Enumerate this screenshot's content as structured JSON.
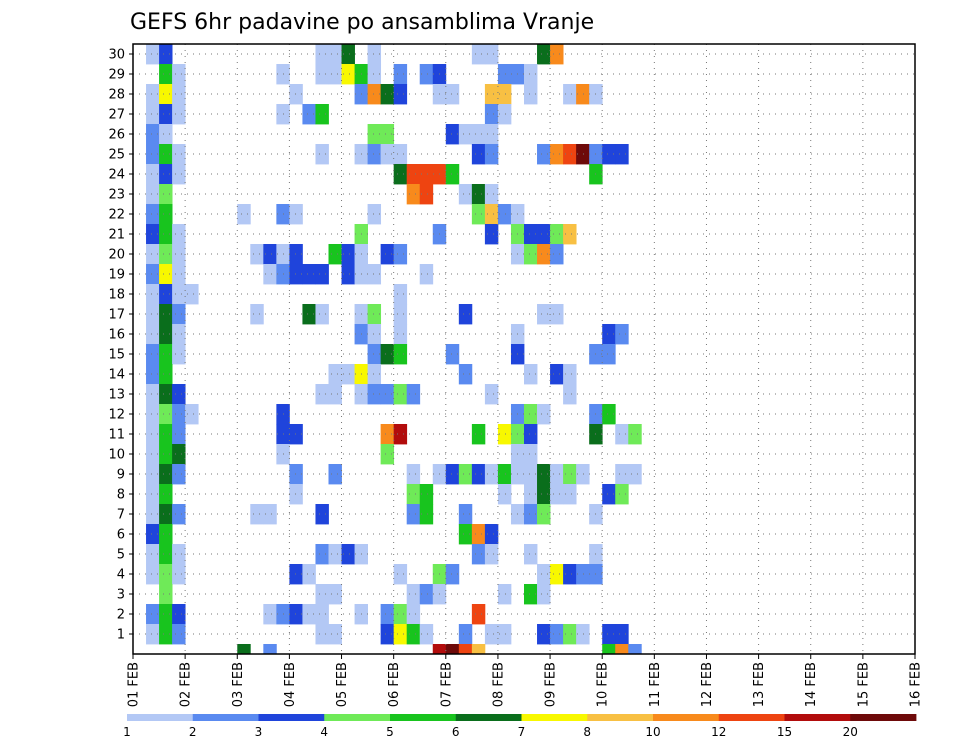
{
  "chart_data": {
    "type": "heatmap",
    "title": "GEFS 6hr padavine po ansamblima Vranje",
    "x_tick_labels": [
      "01 FEB",
      "02 FEB",
      "03 FEB",
      "04 FEB",
      "05 FEB",
      "06 FEB",
      "07 FEB",
      "08 FEB",
      "09 FEB",
      "10 FEB",
      "11 FEB",
      "12 FEB",
      "13 FEB",
      "14 FEB",
      "15 FEB",
      "16 FEB"
    ],
    "y_tick_labels": [
      "1",
      "2",
      "3",
      "4",
      "5",
      "6",
      "7",
      "8",
      "9",
      "10",
      "11",
      "12",
      "13",
      "14",
      "15",
      "16",
      "17",
      "18",
      "19",
      "20",
      "21",
      "22",
      "23",
      "24",
      "25",
      "26",
      "27",
      "28",
      "29",
      "30"
    ],
    "x_range_days": [
      0,
      15
    ],
    "y_range_members": [
      0,
      30
    ],
    "time_step_hours": 6,
    "members": 30,
    "colorbar": {
      "tick_labels": [
        "1",
        "2",
        "3",
        "4",
        "5",
        "6",
        "7",
        "8",
        "10",
        "12",
        "15",
        "20"
      ],
      "levels": [
        1,
        2,
        3,
        4,
        5,
        6,
        7,
        8,
        10,
        12,
        15,
        20
      ],
      "colors": [
        "#b3c8f5",
        "#5a8af0",
        "#1f44db",
        "#6fea58",
        "#18c41e",
        "#0a6e1c",
        "#f8f800",
        "#f8c043",
        "#f88a1c",
        "#ee4411",
        "#b20c0c",
        "#6e0a0a"
      ]
    },
    "cells": [
      [
        30,
        1,
        0
      ],
      [
        30,
        2,
        2
      ],
      [
        30,
        14,
        0
      ],
      [
        30,
        15,
        0
      ],
      [
        30,
        16,
        5
      ],
      [
        30,
        18,
        0
      ],
      [
        30,
        26,
        0
      ],
      [
        30,
        27,
        0
      ],
      [
        30,
        31,
        5
      ],
      [
        30,
        32,
        8
      ],
      [
        29,
        2,
        4
      ],
      [
        29,
        3,
        0
      ],
      [
        29,
        11,
        0
      ],
      [
        29,
        14,
        0
      ],
      [
        29,
        15,
        0
      ],
      [
        29,
        16,
        6
      ],
      [
        29,
        17,
        4
      ],
      [
        29,
        18,
        0
      ],
      [
        29,
        20,
        1
      ],
      [
        29,
        22,
        1
      ],
      [
        29,
        23,
        2
      ],
      [
        29,
        28,
        1
      ],
      [
        29,
        29,
        1
      ],
      [
        29,
        30,
        0
      ],
      [
        28,
        1,
        0
      ],
      [
        28,
        2,
        6
      ],
      [
        28,
        3,
        0
      ],
      [
        28,
        12,
        0
      ],
      [
        28,
        17,
        1
      ],
      [
        28,
        18,
        8
      ],
      [
        28,
        19,
        5
      ],
      [
        28,
        20,
        2
      ],
      [
        28,
        23,
        0
      ],
      [
        28,
        24,
        0
      ],
      [
        28,
        27,
        7
      ],
      [
        28,
        28,
        7
      ],
      [
        28,
        30,
        0
      ],
      [
        28,
        33,
        0
      ],
      [
        28,
        34,
        8
      ],
      [
        28,
        35,
        0
      ],
      [
        27,
        1,
        0
      ],
      [
        27,
        2,
        2
      ],
      [
        27,
        3,
        0
      ],
      [
        27,
        11,
        0
      ],
      [
        27,
        13,
        1
      ],
      [
        27,
        14,
        4
      ],
      [
        27,
        27,
        1
      ],
      [
        27,
        28,
        0
      ],
      [
        26,
        1,
        1
      ],
      [
        26,
        2,
        0
      ],
      [
        26,
        18,
        3
      ],
      [
        26,
        19,
        3
      ],
      [
        26,
        24,
        2
      ],
      [
        26,
        25,
        0
      ],
      [
        26,
        26,
        0
      ],
      [
        26,
        27,
        0
      ],
      [
        25,
        1,
        1
      ],
      [
        25,
        2,
        4
      ],
      [
        25,
        3,
        0
      ],
      [
        25,
        14,
        0
      ],
      [
        25,
        17,
        0
      ],
      [
        25,
        18,
        1
      ],
      [
        25,
        19,
        0
      ],
      [
        25,
        20,
        0
      ],
      [
        25,
        26,
        2
      ],
      [
        25,
        27,
        1
      ],
      [
        25,
        31,
        1
      ],
      [
        25,
        32,
        8
      ],
      [
        25,
        33,
        9
      ],
      [
        25,
        34,
        11
      ],
      [
        25,
        35,
        1
      ],
      [
        25,
        36,
        2
      ],
      [
        25,
        37,
        2
      ],
      [
        24,
        1,
        0
      ],
      [
        24,
        2,
        2
      ],
      [
        24,
        3,
        0
      ],
      [
        24,
        20,
        5
      ],
      [
        24,
        21,
        9
      ],
      [
        24,
        22,
        9
      ],
      [
        24,
        23,
        9
      ],
      [
        24,
        24,
        4
      ],
      [
        24,
        35,
        4
      ],
      [
        23,
        1,
        0
      ],
      [
        23,
        2,
        3
      ],
      [
        23,
        21,
        8
      ],
      [
        23,
        22,
        9
      ],
      [
        23,
        25,
        0
      ],
      [
        23,
        26,
        5
      ],
      [
        23,
        27,
        0
      ],
      [
        22,
        1,
        1
      ],
      [
        22,
        2,
        4
      ],
      [
        22,
        8,
        0
      ],
      [
        22,
        11,
        1
      ],
      [
        22,
        12,
        0
      ],
      [
        22,
        18,
        0
      ],
      [
        22,
        26,
        3
      ],
      [
        22,
        27,
        7
      ],
      [
        22,
        28,
        1
      ],
      [
        22,
        29,
        0
      ],
      [
        21,
        1,
        2
      ],
      [
        21,
        2,
        4
      ],
      [
        21,
        3,
        0
      ],
      [
        21,
        17,
        3
      ],
      [
        21,
        23,
        1
      ],
      [
        21,
        27,
        2
      ],
      [
        21,
        29,
        3
      ],
      [
        21,
        30,
        2
      ],
      [
        21,
        31,
        2
      ],
      [
        21,
        32,
        3
      ],
      [
        21,
        33,
        7
      ],
      [
        20,
        1,
        0
      ],
      [
        20,
        2,
        3
      ],
      [
        20,
        3,
        0
      ],
      [
        20,
        9,
        0
      ],
      [
        20,
        10,
        2
      ],
      [
        20,
        11,
        0
      ],
      [
        20,
        12,
        2
      ],
      [
        20,
        15,
        4
      ],
      [
        20,
        16,
        2
      ],
      [
        20,
        17,
        0
      ],
      [
        20,
        19,
        2
      ],
      [
        20,
        20,
        1
      ],
      [
        20,
        29,
        0
      ],
      [
        20,
        30,
        3
      ],
      [
        20,
        31,
        8
      ],
      [
        20,
        32,
        1
      ],
      [
        19,
        1,
        1
      ],
      [
        19,
        2,
        6
      ],
      [
        19,
        3,
        0
      ],
      [
        19,
        10,
        0
      ],
      [
        19,
        11,
        1
      ],
      [
        19,
        12,
        2
      ],
      [
        19,
        13,
        2
      ],
      [
        19,
        14,
        2
      ],
      [
        19,
        16,
        2
      ],
      [
        19,
        17,
        0
      ],
      [
        19,
        18,
        0
      ],
      [
        19,
        22,
        0
      ],
      [
        18,
        1,
        0
      ],
      [
        18,
        2,
        2
      ],
      [
        18,
        3,
        0
      ],
      [
        18,
        4,
        0
      ],
      [
        18,
        20,
        0
      ],
      [
        17,
        1,
        0
      ],
      [
        17,
        2,
        5
      ],
      [
        17,
        3,
        1
      ],
      [
        17,
        9,
        0
      ],
      [
        17,
        13,
        5
      ],
      [
        17,
        14,
        0
      ],
      [
        17,
        17,
        0
      ],
      [
        17,
        18,
        3
      ],
      [
        17,
        20,
        0
      ],
      [
        17,
        25,
        2
      ],
      [
        17,
        31,
        0
      ],
      [
        17,
        32,
        0
      ],
      [
        16,
        1,
        0
      ],
      [
        16,
        2,
        5
      ],
      [
        16,
        3,
        0
      ],
      [
        16,
        17,
        1
      ],
      [
        16,
        18,
        0
      ],
      [
        16,
        20,
        0
      ],
      [
        16,
        29,
        0
      ],
      [
        16,
        36,
        2
      ],
      [
        16,
        37,
        1
      ],
      [
        15,
        1,
        1
      ],
      [
        15,
        2,
        4
      ],
      [
        15,
        3,
        0
      ],
      [
        15,
        18,
        1
      ],
      [
        15,
        19,
        5
      ],
      [
        15,
        20,
        4
      ],
      [
        15,
        24,
        1
      ],
      [
        15,
        29,
        2
      ],
      [
        15,
        35,
        1
      ],
      [
        15,
        36,
        1
      ],
      [
        14,
        1,
        1
      ],
      [
        14,
        2,
        4
      ],
      [
        14,
        15,
        0
      ],
      [
        14,
        16,
        0
      ],
      [
        14,
        17,
        6
      ],
      [
        14,
        18,
        0
      ],
      [
        14,
        25,
        1
      ],
      [
        14,
        30,
        0
      ],
      [
        14,
        32,
        2
      ],
      [
        14,
        33,
        0
      ],
      [
        13,
        1,
        0
      ],
      [
        13,
        2,
        5
      ],
      [
        13,
        3,
        2
      ],
      [
        13,
        14,
        0
      ],
      [
        13,
        15,
        0
      ],
      [
        13,
        17,
        0
      ],
      [
        13,
        18,
        1
      ],
      [
        13,
        19,
        1
      ],
      [
        13,
        20,
        3
      ],
      [
        13,
        21,
        1
      ],
      [
        13,
        27,
        0
      ],
      [
        13,
        33,
        0
      ],
      [
        12,
        1,
        0
      ],
      [
        12,
        2,
        3
      ],
      [
        12,
        3,
        1
      ],
      [
        12,
        4,
        0
      ],
      [
        12,
        11,
        2
      ],
      [
        12,
        29,
        1
      ],
      [
        12,
        30,
        3
      ],
      [
        12,
        31,
        0
      ],
      [
        12,
        35,
        1
      ],
      [
        12,
        36,
        4
      ],
      [
        11,
        1,
        0
      ],
      [
        11,
        2,
        4
      ],
      [
        11,
        3,
        1
      ],
      [
        11,
        11,
        2
      ],
      [
        11,
        12,
        2
      ],
      [
        11,
        19,
        8
      ],
      [
        11,
        20,
        10
      ],
      [
        11,
        26,
        4
      ],
      [
        11,
        28,
        6
      ],
      [
        11,
        29,
        3
      ],
      [
        11,
        30,
        2
      ],
      [
        11,
        35,
        5
      ],
      [
        11,
        37,
        0
      ],
      [
        11,
        38,
        3
      ],
      [
        10,
        1,
        0
      ],
      [
        10,
        2,
        4
      ],
      [
        10,
        3,
        5
      ],
      [
        10,
        11,
        0
      ],
      [
        10,
        19,
        3
      ],
      [
        10,
        29,
        0
      ],
      [
        10,
        30,
        0
      ],
      [
        9,
        1,
        0
      ],
      [
        9,
        2,
        5
      ],
      [
        9,
        3,
        1
      ],
      [
        9,
        12,
        1
      ],
      [
        9,
        15,
        1
      ],
      [
        9,
        21,
        0
      ],
      [
        9,
        23,
        0
      ],
      [
        9,
        24,
        2
      ],
      [
        9,
        25,
        3
      ],
      [
        9,
        26,
        2
      ],
      [
        9,
        27,
        0
      ],
      [
        9,
        28,
        4
      ],
      [
        9,
        29,
        0
      ],
      [
        9,
        30,
        0
      ],
      [
        9,
        31,
        5
      ],
      [
        9,
        32,
        0
      ],
      [
        9,
        33,
        3
      ],
      [
        9,
        34,
        0
      ],
      [
        9,
        37,
        0
      ],
      [
        9,
        38,
        0
      ],
      [
        8,
        1,
        0
      ],
      [
        8,
        2,
        4
      ],
      [
        8,
        12,
        0
      ],
      [
        8,
        21,
        3
      ],
      [
        8,
        22,
        4
      ],
      [
        8,
        28,
        0
      ],
      [
        8,
        30,
        0
      ],
      [
        8,
        31,
        5
      ],
      [
        8,
        32,
        0
      ],
      [
        8,
        33,
        0
      ],
      [
        8,
        36,
        2
      ],
      [
        8,
        37,
        3
      ],
      [
        7,
        1,
        0
      ],
      [
        7,
        2,
        5
      ],
      [
        7,
        3,
        1
      ],
      [
        7,
        9,
        0
      ],
      [
        7,
        10,
        0
      ],
      [
        7,
        14,
        2
      ],
      [
        7,
        21,
        1
      ],
      [
        7,
        22,
        4
      ],
      [
        7,
        25,
        1
      ],
      [
        7,
        29,
        0
      ],
      [
        7,
        30,
        1
      ],
      [
        7,
        31,
        3
      ],
      [
        7,
        35,
        0
      ],
      [
        6,
        1,
        2
      ],
      [
        6,
        2,
        4
      ],
      [
        6,
        25,
        4
      ],
      [
        6,
        26,
        8
      ],
      [
        6,
        27,
        2
      ],
      [
        5,
        1,
        0
      ],
      [
        5,
        2,
        4
      ],
      [
        5,
        3,
        0
      ],
      [
        5,
        14,
        1
      ],
      [
        5,
        15,
        0
      ],
      [
        5,
        16,
        2
      ],
      [
        5,
        17,
        0
      ],
      [
        5,
        26,
        1
      ],
      [
        5,
        27,
        0
      ],
      [
        5,
        30,
        0
      ],
      [
        5,
        35,
        0
      ],
      [
        4,
        1,
        0
      ],
      [
        4,
        2,
        3
      ],
      [
        4,
        3,
        0
      ],
      [
        4,
        12,
        2
      ],
      [
        4,
        13,
        0
      ],
      [
        4,
        20,
        0
      ],
      [
        4,
        23,
        3
      ],
      [
        4,
        24,
        1
      ],
      [
        4,
        31,
        0
      ],
      [
        4,
        32,
        6
      ],
      [
        4,
        33,
        2
      ],
      [
        4,
        34,
        1
      ],
      [
        4,
        35,
        1
      ],
      [
        3,
        2,
        3
      ],
      [
        3,
        14,
        0
      ],
      [
        3,
        15,
        0
      ],
      [
        3,
        21,
        0
      ],
      [
        3,
        22,
        1
      ],
      [
        3,
        23,
        0
      ],
      [
        3,
        28,
        0
      ],
      [
        3,
        30,
        4
      ],
      [
        3,
        31,
        0
      ],
      [
        2,
        1,
        1
      ],
      [
        2,
        2,
        4
      ],
      [
        2,
        3,
        2
      ],
      [
        2,
        10,
        0
      ],
      [
        2,
        11,
        1
      ],
      [
        2,
        12,
        2
      ],
      [
        2,
        13,
        0
      ],
      [
        2,
        14,
        0
      ],
      [
        2,
        17,
        0
      ],
      [
        2,
        19,
        1
      ],
      [
        2,
        20,
        3
      ],
      [
        2,
        21,
        0
      ],
      [
        2,
        26,
        9
      ],
      [
        1,
        1,
        0
      ],
      [
        1,
        2,
        4
      ],
      [
        1,
        3,
        1
      ],
      [
        1,
        14,
        0
      ],
      [
        1,
        15,
        0
      ],
      [
        1,
        19,
        2
      ],
      [
        1,
        20,
        6
      ],
      [
        1,
        21,
        4
      ],
      [
        1,
        22,
        0
      ],
      [
        1,
        25,
        1
      ],
      [
        1,
        27,
        0
      ],
      [
        1,
        28,
        0
      ],
      [
        1,
        31,
        2
      ],
      [
        1,
        32,
        1
      ],
      [
        1,
        33,
        3
      ],
      [
        1,
        34,
        0
      ],
      [
        1,
        36,
        2
      ],
      [
        1,
        37,
        2
      ],
      [
        0,
        8,
        5
      ],
      [
        0,
        10,
        1
      ],
      [
        0,
        23,
        10
      ],
      [
        0,
        24,
        11
      ],
      [
        0,
        25,
        9
      ],
      [
        0,
        26,
        7
      ],
      [
        0,
        36,
        4
      ],
      [
        0,
        37,
        8
      ],
      [
        0,
        38,
        1
      ]
    ]
  }
}
